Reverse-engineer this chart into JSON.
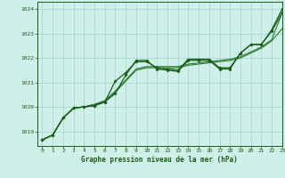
{
  "title": "Graphe pression niveau de la mer (hPa)",
  "bg_color": "#cff0e8",
  "grid_color": "#aad8ce",
  "line_color1": "#1a5c1a",
  "line_color2": "#2d7a2d",
  "xlim": [
    -0.5,
    23
  ],
  "ylim": [
    1018.4,
    1024.3
  ],
  "yticks": [
    1019,
    1020,
    1021,
    1022,
    1023,
    1024
  ],
  "xticks": [
    0,
    1,
    2,
    3,
    4,
    5,
    6,
    7,
    8,
    9,
    10,
    11,
    12,
    13,
    14,
    15,
    16,
    17,
    18,
    19,
    20,
    21,
    22,
    23
  ],
  "hours": [
    0,
    1,
    2,
    3,
    4,
    5,
    6,
    7,
    8,
    9,
    10,
    11,
    12,
    13,
    14,
    15,
    16,
    17,
    18,
    19,
    20,
    21,
    22,
    23
  ],
  "line_jagged1": [
    1018.65,
    1018.85,
    1019.55,
    1019.95,
    1020.0,
    1020.05,
    1020.2,
    1021.05,
    1021.4,
    1021.85,
    1021.85,
    1021.6,
    1021.55,
    1021.5,
    1021.95,
    1021.95,
    1021.95,
    1021.6,
    1021.6,
    1022.2,
    1022.55,
    1022.55,
    1023.15,
    1024.0
  ],
  "line_jagged2": [
    1018.65,
    1018.85,
    1019.55,
    1019.95,
    1020.0,
    1020.05,
    1020.2,
    1020.55,
    1021.3,
    1021.9,
    1021.9,
    1021.55,
    1021.5,
    1021.45,
    1021.9,
    1021.9,
    1021.9,
    1021.55,
    1021.55,
    1022.2,
    1022.55,
    1022.55,
    1023.1,
    1023.85
  ],
  "line_smooth1": [
    1018.65,
    1018.85,
    1019.55,
    1019.95,
    1020.0,
    1020.1,
    1020.25,
    1020.6,
    1021.05,
    1021.5,
    1021.6,
    1021.6,
    1021.6,
    1021.6,
    1021.7,
    1021.75,
    1021.8,
    1021.85,
    1021.9,
    1022.0,
    1022.2,
    1022.4,
    1022.7,
    1023.2
  ],
  "line_smooth2": [
    1018.65,
    1018.85,
    1019.55,
    1019.95,
    1020.0,
    1020.1,
    1020.25,
    1020.65,
    1021.1,
    1021.55,
    1021.65,
    1021.65,
    1021.65,
    1021.65,
    1021.75,
    1021.8,
    1021.85,
    1021.9,
    1021.95,
    1022.05,
    1022.25,
    1022.45,
    1022.75,
    1023.85
  ],
  "marker_size": 2.0
}
